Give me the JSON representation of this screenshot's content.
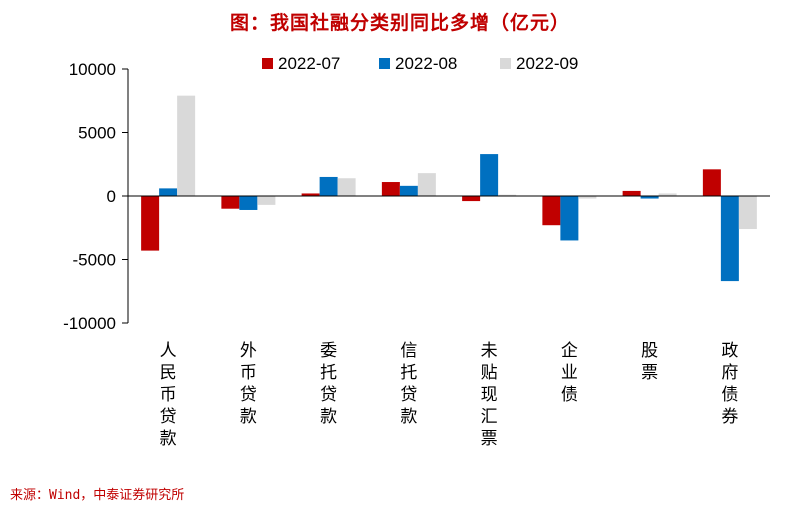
{
  "title": "图：我国社融分类别同比多增（亿元）",
  "source": "来源：Wind，中泰证券研究所",
  "colors": {
    "2022-07": "#c00000",
    "2022-08": "#0070c0",
    "2022-09": "#d9d9d9",
    "title": "#c00000"
  },
  "chart_data": {
    "type": "bar",
    "title": "图：我国社融分类别同比多增（亿元）",
    "xlabel": "",
    "ylabel": "",
    "ylim": [
      -10000,
      10000
    ],
    "yticks": [
      -10000,
      -5000,
      0,
      5000,
      10000
    ],
    "grid": false,
    "legend": "top",
    "categories": [
      "人民币贷款",
      "外币贷款",
      "委托贷款",
      "信托贷款",
      "未贴现汇票",
      "企业债",
      "股票",
      "政府债券"
    ],
    "series": [
      {
        "name": "2022-07",
        "values": [
          -4300,
          -1000,
          200,
          1100,
          -400,
          -2300,
          400,
          2100
        ]
      },
      {
        "name": "2022-08",
        "values": [
          600,
          -1100,
          1500,
          800,
          3300,
          -3500,
          -200,
          -6700
        ]
      },
      {
        "name": "2022-09",
        "values": [
          7900,
          -700,
          1400,
          1800,
          100,
          -200,
          200,
          -2600
        ]
      }
    ]
  }
}
